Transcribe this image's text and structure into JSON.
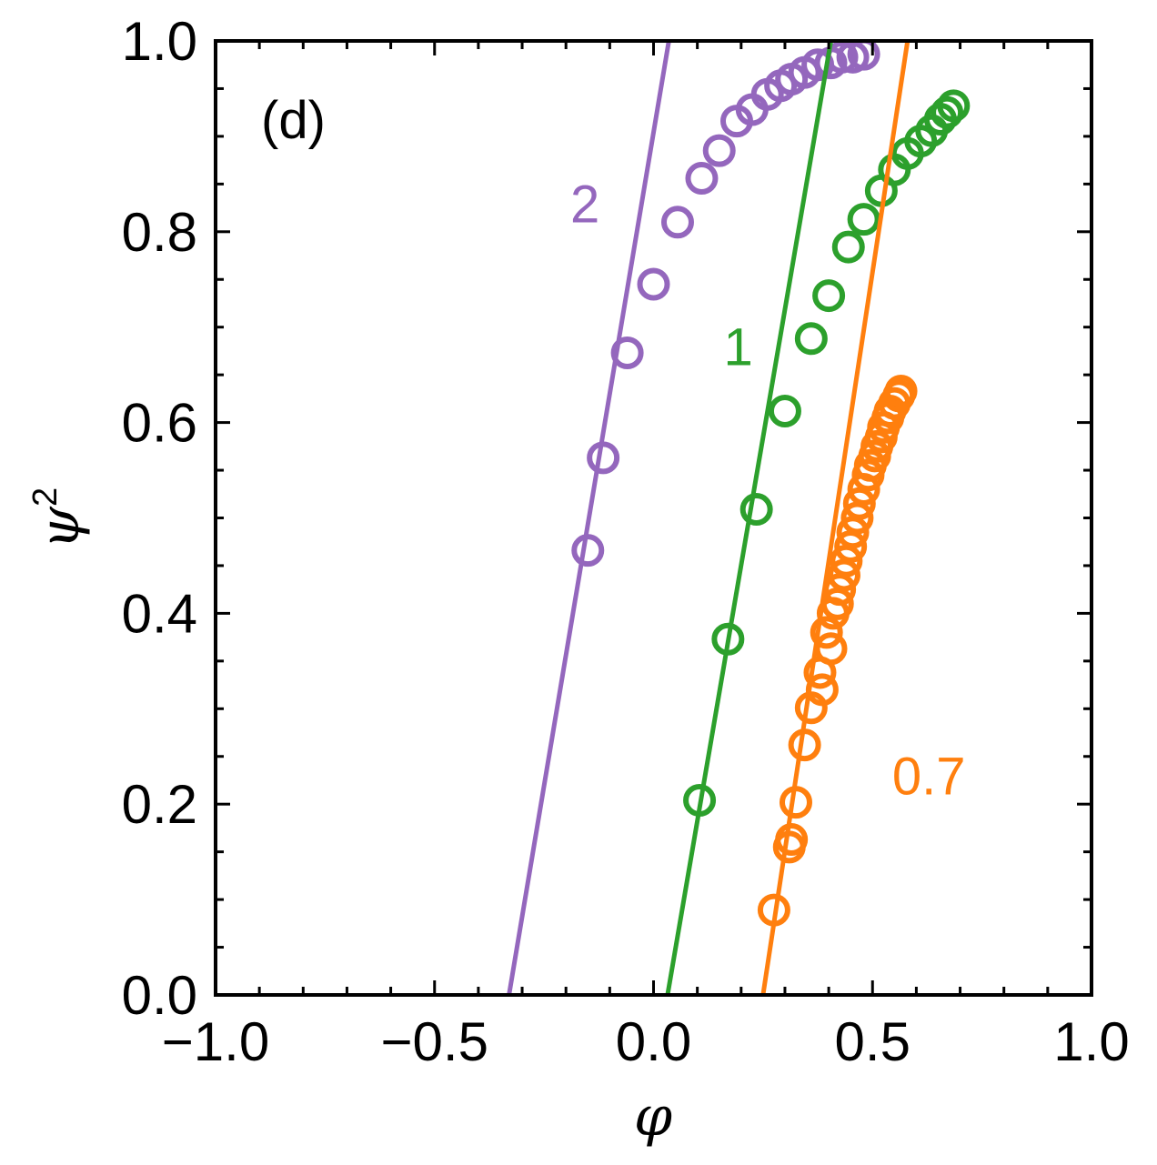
{
  "chart_data": {
    "type": "scatter",
    "panel_label": "(d)",
    "xlabel": "φ",
    "ylabel_base": "ψ",
    "ylabel_sup": "2",
    "xlim": [
      -1.0,
      1.0
    ],
    "ylim": [
      0.0,
      1.0
    ],
    "xticks": [
      {
        "value": -1.0,
        "label": "−1.0"
      },
      {
        "value": -0.5,
        "label": "−0.5"
      },
      {
        "value": 0.0,
        "label": "0.0"
      },
      {
        "value": 0.5,
        "label": "0.5"
      },
      {
        "value": 1.0,
        "label": "1.0"
      }
    ],
    "yticks": [
      {
        "value": 0.0,
        "label": "0.0"
      },
      {
        "value": 0.2,
        "label": "0.2"
      },
      {
        "value": 0.4,
        "label": "0.4"
      },
      {
        "value": 0.6,
        "label": "0.6"
      },
      {
        "value": 0.8,
        "label": "0.8"
      },
      {
        "value": 1.0,
        "label": "1.0"
      }
    ],
    "series": [
      {
        "name": "2",
        "color": "#9467bd",
        "label_pos": [
          -0.19,
          0.81
        ],
        "line": [
          [
            -0.33,
            0.0
          ],
          [
            0.035,
            1.0
          ]
        ],
        "points": [
          [
            -0.15,
            0.466
          ],
          [
            -0.115,
            0.563
          ],
          [
            -0.06,
            0.673
          ],
          [
            0.0,
            0.745
          ],
          [
            0.055,
            0.81
          ],
          [
            0.11,
            0.856
          ],
          [
            0.15,
            0.885
          ],
          [
            0.19,
            0.916
          ],
          [
            0.225,
            0.928
          ],
          [
            0.26,
            0.944
          ],
          [
            0.29,
            0.953
          ],
          [
            0.315,
            0.96
          ],
          [
            0.345,
            0.967
          ],
          [
            0.375,
            0.975
          ],
          [
            0.405,
            0.977
          ],
          [
            0.43,
            0.983
          ],
          [
            0.455,
            0.983
          ],
          [
            0.48,
            0.986
          ]
        ]
      },
      {
        "name": "1",
        "color": "#2ca02c",
        "label_pos": [
          0.16,
          0.66
        ],
        "line": [
          [
            0.032,
            0.0
          ],
          [
            0.405,
            1.0
          ]
        ],
        "points": [
          [
            0.105,
            0.204
          ],
          [
            0.17,
            0.373
          ],
          [
            0.235,
            0.509
          ],
          [
            0.3,
            0.612
          ],
          [
            0.36,
            0.688
          ],
          [
            0.4,
            0.733
          ],
          [
            0.445,
            0.784
          ],
          [
            0.48,
            0.813
          ],
          [
            0.52,
            0.843
          ],
          [
            0.55,
            0.865
          ],
          [
            0.58,
            0.882
          ],
          [
            0.61,
            0.895
          ],
          [
            0.635,
            0.906
          ],
          [
            0.655,
            0.918
          ],
          [
            0.67,
            0.925
          ],
          [
            0.685,
            0.932
          ]
        ]
      },
      {
        "name": "0.7",
        "color": "#ff7f0e",
        "label_pos": [
          0.545,
          0.21
        ],
        "line": [
          [
            0.25,
            0.0
          ],
          [
            0.58,
            1.0
          ]
        ],
        "points": [
          [
            0.275,
            0.089
          ],
          [
            0.31,
            0.155
          ],
          [
            0.315,
            0.163
          ],
          [
            0.325,
            0.202
          ],
          [
            0.345,
            0.262
          ],
          [
            0.36,
            0.301
          ],
          [
            0.38,
            0.338
          ],
          [
            0.385,
            0.32
          ],
          [
            0.395,
            0.38
          ],
          [
            0.405,
            0.363
          ],
          [
            0.41,
            0.4
          ],
          [
            0.42,
            0.41
          ],
          [
            0.425,
            0.425
          ],
          [
            0.435,
            0.44
          ],
          [
            0.44,
            0.455
          ],
          [
            0.45,
            0.47
          ],
          [
            0.455,
            0.485
          ],
          [
            0.465,
            0.5
          ],
          [
            0.47,
            0.515
          ],
          [
            0.48,
            0.53
          ],
          [
            0.49,
            0.545
          ],
          [
            0.495,
            0.555
          ],
          [
            0.505,
            0.565
          ],
          [
            0.51,
            0.575
          ],
          [
            0.52,
            0.585
          ],
          [
            0.525,
            0.595
          ],
          [
            0.535,
            0.605
          ],
          [
            0.54,
            0.612
          ],
          [
            0.55,
            0.62
          ],
          [
            0.56,
            0.628
          ],
          [
            0.565,
            0.633
          ]
        ]
      }
    ]
  }
}
